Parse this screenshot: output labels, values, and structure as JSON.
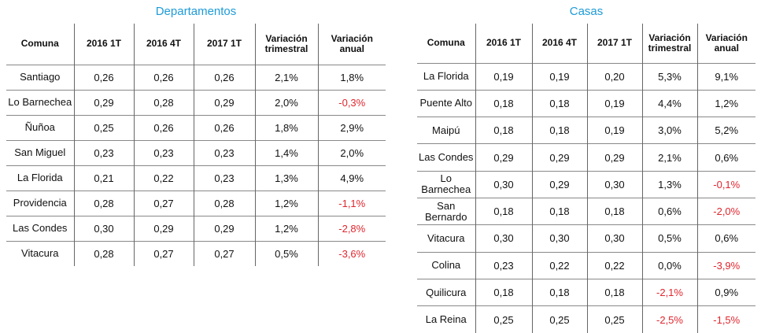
{
  "left": {
    "title": "Departamentos",
    "headers": [
      "Comuna",
      "2016 1T",
      "2016 4T",
      "2017 1T",
      "Variación trimestral",
      "Variación anual"
    ],
    "rows": [
      [
        "Santiago",
        "0,26",
        "0,26",
        "0,26",
        "2,1%",
        "1,8%"
      ],
      [
        "Lo Barnechea",
        "0,29",
        "0,28",
        "0,29",
        "2,0%",
        "-0,3%"
      ],
      [
        "Ñuñoa",
        "0,25",
        "0,26",
        "0,26",
        "1,8%",
        "2,9%"
      ],
      [
        "San Miguel",
        "0,23",
        "0,23",
        "0,23",
        "1,4%",
        "2,0%"
      ],
      [
        "La Florida",
        "0,21",
        "0,22",
        "0,23",
        "1,3%",
        "4,9%"
      ],
      [
        "Providencia",
        "0,28",
        "0,27",
        "0,28",
        "1,2%",
        "-1,1%"
      ],
      [
        "Las Condes",
        "0,30",
        "0,29",
        "0,29",
        "1,2%",
        "-2,8%"
      ],
      [
        "Vitacura",
        "0,28",
        "0,27",
        "0,27",
        "0,5%",
        "-3,6%"
      ]
    ]
  },
  "right": {
    "title": "Casas",
    "headers": [
      "Comuna",
      "2016 1T",
      "2016 4T",
      "2017 1T",
      "Variación trimestral",
      "Variación anual"
    ],
    "rows": [
      [
        "La Florida",
        "0,19",
        "0,19",
        "0,20",
        "5,3%",
        "9,1%"
      ],
      [
        "Puente Alto",
        "0,18",
        "0,18",
        "0,19",
        "4,4%",
        "1,2%"
      ],
      [
        "Maipú",
        "0,18",
        "0,18",
        "0,19",
        "3,0%",
        "5,2%"
      ],
      [
        "Las Condes",
        "0,29",
        "0,29",
        "0,29",
        "2,1%",
        "0,6%"
      ],
      [
        "Lo Barnechea",
        "0,30",
        "0,29",
        "0,30",
        "1,3%",
        "-0,1%"
      ],
      [
        "San Bernardo",
        "0,18",
        "0,18",
        "0,18",
        "0,6%",
        "-2,0%"
      ],
      [
        "Vitacura",
        "0,30",
        "0,30",
        "0,30",
        "0,5%",
        "0,6%"
      ],
      [
        "Colina",
        "0,23",
        "0,22",
        "0,22",
        "0,0%",
        "-3,9%"
      ],
      [
        "Quilicura",
        "0,18",
        "0,18",
        "0,18",
        "-2,1%",
        "0,9%"
      ],
      [
        "La Reina",
        "0,25",
        "0,25",
        "0,25",
        "-2,5%",
        "-1,5%"
      ]
    ]
  },
  "colors": {
    "title": "#1e9bd7",
    "negative": "#e0262e"
  }
}
